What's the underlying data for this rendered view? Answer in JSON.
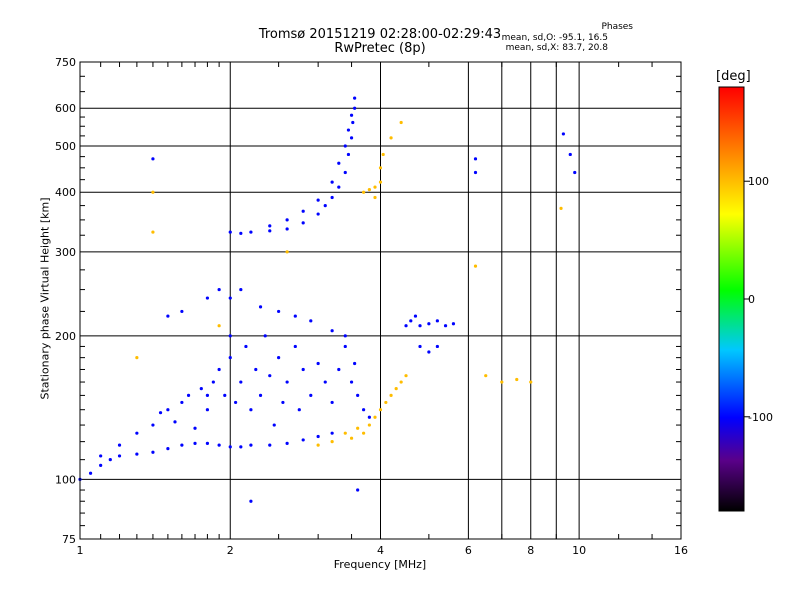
{
  "header": {
    "line1": "Tromsø 20151219 02:28:00-02:29:43",
    "line2": "RwPretec (8p)",
    "phases_title": "Phases",
    "phases_o": "mean, sd,O: -95.1, 16.5",
    "phases_x": "mean, sd,X: 83.7, 20.8"
  },
  "chart_data": {
    "type": "scatter",
    "xlabel": "Frequency [MHz]",
    "ylabel": "Stationary phase Virtual Height [km]",
    "xscale": "log",
    "yscale": "log",
    "xlim": [
      1,
      16
    ],
    "ylim": [
      75,
      750
    ],
    "xticks": [
      1,
      2,
      4,
      6,
      8,
      10,
      16
    ],
    "xtick_labels": [
      "1",
      "2",
      "4",
      "6",
      "8",
      "10",
      "16"
    ],
    "xminor": [
      7,
      9
    ],
    "yticks": [
      75,
      100,
      200,
      300,
      400,
      500,
      600,
      750
    ],
    "ytick_labels": [
      "75",
      "100",
      "200",
      "300",
      "400",
      "500",
      "600",
      "750"
    ],
    "grid": true,
    "colorbar": {
      "label": "[deg]",
      "range": [
        -180,
        180
      ],
      "ticks": [
        100,
        0,
        -100
      ],
      "tick_labels": [
        "100",
        "0",
        "-100"
      ]
    },
    "point_groups": [
      {
        "name": "lower-O-trace",
        "phase": -100,
        "points": [
          [
            1.0,
            100
          ],
          [
            1.05,
            103
          ],
          [
            1.1,
            107
          ],
          [
            1.15,
            110
          ],
          [
            1.2,
            112
          ],
          [
            1.3,
            113
          ],
          [
            1.4,
            114
          ],
          [
            1.5,
            116
          ],
          [
            1.6,
            118
          ],
          [
            1.7,
            119
          ],
          [
            1.8,
            119
          ],
          [
            1.9,
            118
          ],
          [
            2.0,
            117
          ],
          [
            2.1,
            117
          ],
          [
            2.2,
            118
          ],
          [
            2.4,
            118
          ],
          [
            2.6,
            119
          ],
          [
            2.8,
            121
          ],
          [
            3.0,
            123
          ],
          [
            3.2,
            125
          ]
        ]
      },
      {
        "name": "lower-cloud",
        "phase": -100,
        "points": [
          [
            1.1,
            112
          ],
          [
            1.2,
            118
          ],
          [
            1.3,
            125
          ],
          [
            1.4,
            130
          ],
          [
            1.45,
            138
          ],
          [
            1.5,
            140
          ],
          [
            1.55,
            132
          ],
          [
            1.6,
            145
          ],
          [
            1.65,
            150
          ],
          [
            1.7,
            128
          ],
          [
            1.75,
            155
          ],
          [
            1.8,
            140
          ],
          [
            1.85,
            160
          ],
          [
            1.9,
            170
          ],
          [
            1.95,
            150
          ],
          [
            2.0,
            180
          ],
          [
            2.05,
            145
          ],
          [
            2.1,
            160
          ],
          [
            2.15,
            190
          ],
          [
            2.2,
            140
          ],
          [
            2.25,
            170
          ],
          [
            2.3,
            150
          ],
          [
            2.35,
            200
          ],
          [
            2.4,
            165
          ],
          [
            2.45,
            130
          ],
          [
            2.5,
            180
          ],
          [
            2.55,
            145
          ],
          [
            2.6,
            160
          ],
          [
            2.7,
            190
          ],
          [
            2.75,
            140
          ],
          [
            2.8,
            170
          ],
          [
            2.9,
            150
          ],
          [
            3.0,
            175
          ],
          [
            3.1,
            160
          ],
          [
            3.2,
            145
          ],
          [
            3.3,
            170
          ],
          [
            3.4,
            190
          ],
          [
            3.5,
            160
          ],
          [
            3.55,
            175
          ],
          [
            3.6,
            150
          ],
          [
            3.7,
            140
          ],
          [
            3.8,
            135
          ],
          [
            1.5,
            220
          ],
          [
            1.6,
            225
          ],
          [
            1.8,
            240
          ],
          [
            1.9,
            250
          ],
          [
            2.0,
            240
          ],
          [
            2.1,
            250
          ],
          [
            2.3,
            230
          ],
          [
            2.5,
            225
          ],
          [
            2.7,
            220
          ],
          [
            2.9,
            215
          ],
          [
            3.2,
            205
          ],
          [
            3.4,
            200
          ]
        ]
      },
      {
        "name": "upper-O-trace",
        "phase": -100,
        "points": [
          [
            2.0,
            330
          ],
          [
            2.1,
            328
          ],
          [
            2.2,
            330
          ],
          [
            2.4,
            332
          ],
          [
            2.6,
            335
          ],
          [
            2.8,
            345
          ],
          [
            3.0,
            360
          ],
          [
            3.1,
            375
          ],
          [
            3.2,
            390
          ],
          [
            3.3,
            410
          ],
          [
            3.4,
            440
          ],
          [
            3.45,
            480
          ],
          [
            3.5,
            520
          ],
          [
            3.52,
            560
          ],
          [
            3.55,
            600
          ],
          [
            3.55,
            630
          ],
          [
            2.4,
            340
          ],
          [
            2.6,
            350
          ],
          [
            2.8,
            365
          ],
          [
            3.0,
            385
          ],
          [
            3.2,
            420
          ],
          [
            3.3,
            460
          ],
          [
            3.4,
            500
          ],
          [
            3.45,
            540
          ],
          [
            3.5,
            580
          ]
        ]
      },
      {
        "name": "upper-X-trace",
        "phase": 100,
        "points": [
          [
            3.7,
            400
          ],
          [
            3.8,
            405
          ],
          [
            3.9,
            410
          ],
          [
            4.0,
            420
          ],
          [
            4.0,
            450
          ],
          [
            4.05,
            480
          ],
          [
            3.9,
            390
          ],
          [
            4.2,
            520
          ],
          [
            4.4,
            560
          ]
        ]
      },
      {
        "name": "lower-X-trace",
        "phase": 100,
        "points": [
          [
            3.0,
            118
          ],
          [
            3.2,
            120
          ],
          [
            3.4,
            125
          ],
          [
            3.6,
            128
          ],
          [
            3.8,
            130
          ],
          [
            3.9,
            135
          ],
          [
            4.0,
            140
          ],
          [
            4.1,
            145
          ],
          [
            4.2,
            150
          ],
          [
            4.3,
            155
          ],
          [
            4.4,
            160
          ],
          [
            3.7,
            125
          ],
          [
            3.5,
            122
          ],
          [
            4.5,
            165
          ]
        ]
      },
      {
        "name": "E-region-group",
        "phase": -100,
        "points": [
          [
            4.5,
            210
          ],
          [
            4.6,
            215
          ],
          [
            4.7,
            220
          ],
          [
            4.8,
            210
          ],
          [
            5.0,
            212
          ],
          [
            5.2,
            215
          ],
          [
            5.4,
            210
          ],
          [
            5.6,
            212
          ],
          [
            4.8,
            190
          ],
          [
            5.0,
            185
          ],
          [
            5.2,
            190
          ]
        ]
      },
      {
        "name": "scattered",
        "phase": 100,
        "points": [
          [
            1.4,
            330
          ],
          [
            1.4,
            400
          ],
          [
            2.6,
            300
          ],
          [
            6.2,
            280
          ],
          [
            6.5,
            165
          ],
          [
            7.0,
            160
          ],
          [
            7.5,
            162
          ],
          [
            8.0,
            160
          ],
          [
            9.2,
            370
          ],
          [
            1.3,
            180
          ],
          [
            1.9,
            210
          ]
        ]
      },
      {
        "name": "scattered-O",
        "phase": -100,
        "points": [
          [
            1.4,
            470
          ],
          [
            6.2,
            470
          ],
          [
            6.2,
            440
          ],
          [
            9.3,
            530
          ],
          [
            9.6,
            480
          ],
          [
            9.8,
            440
          ],
          [
            2.2,
            90
          ],
          [
            3.6,
            95
          ],
          [
            1.8,
            150
          ],
          [
            2.0,
            200
          ]
        ]
      }
    ]
  }
}
